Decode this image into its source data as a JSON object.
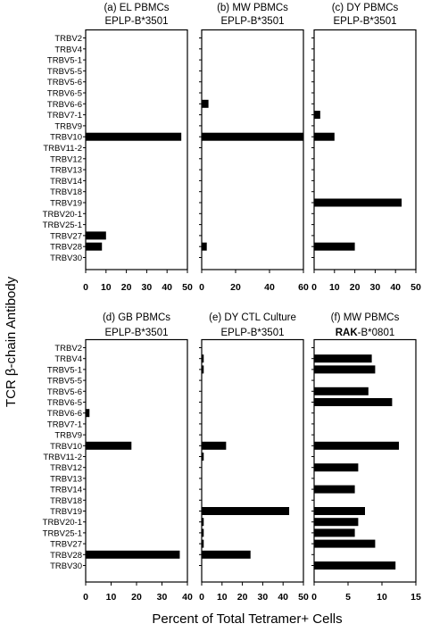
{
  "figure": {
    "ylabel": "TCR β-chain Antibody",
    "xlabel": "Percent of Total Tetramer+ Cells"
  },
  "chart_data": [
    {
      "type": "bar",
      "orientation": "horizontal",
      "title": "(a) EL PBMCs",
      "subtitle": "EPLP-B*3501",
      "subtitle_bold": "",
      "categories": [
        "TRBV2",
        "TRBV4",
        "TRBV5-1",
        "TRBV5-5",
        "TRBV5-6",
        "TRBV6-5",
        "TRBV6-6",
        "TRBV7-1",
        "TRBV9",
        "TRBV10",
        "TRBV11-2",
        "TRBV12",
        "TRBV13",
        "TRBV14",
        "TRBV18",
        "TRBV19",
        "TRBV20-1",
        "TRBV25-1",
        "TRBV27",
        "TRBV28",
        "TRBV30"
      ],
      "values": [
        0,
        0,
        0,
        0,
        0,
        0,
        0,
        0,
        0,
        47,
        0,
        0,
        0,
        0,
        0,
        0,
        0,
        0,
        10,
        8,
        0
      ],
      "xlim": [
        0,
        50
      ],
      "xticks": [
        "0",
        "10",
        "20",
        "30",
        "40",
        "50"
      ]
    },
    {
      "type": "bar",
      "orientation": "horizontal",
      "title": "(b) MW PBMCs",
      "subtitle": "EPLP-B*3501",
      "subtitle_bold": "",
      "categories": [
        "TRBV2",
        "TRBV4",
        "TRBV5-1",
        "TRBV5-5",
        "TRBV5-6",
        "TRBV6-5",
        "TRBV6-6",
        "TRBV7-1",
        "TRBV9",
        "TRBV10",
        "TRBV11-2",
        "TRBV12",
        "TRBV13",
        "TRBV14",
        "TRBV18",
        "TRBV19",
        "TRBV20-1",
        "TRBV25-1",
        "TRBV27",
        "TRBV28",
        "TRBV30"
      ],
      "values": [
        0,
        0,
        0,
        0,
        0,
        0,
        4,
        0,
        0,
        60,
        0,
        0,
        0,
        0,
        0,
        0,
        0,
        0,
        0,
        3,
        0
      ],
      "xlim": [
        0,
        60
      ],
      "xticks": [
        "0",
        "20",
        "40",
        "60"
      ]
    },
    {
      "type": "bar",
      "orientation": "horizontal",
      "title": "(c) DY PBMCs",
      "subtitle": "EPLP-B*3501",
      "subtitle_bold": "",
      "categories": [
        "TRBV2",
        "TRBV4",
        "TRBV5-1",
        "TRBV5-5",
        "TRBV5-6",
        "TRBV6-5",
        "TRBV6-6",
        "TRBV7-1",
        "TRBV9",
        "TRBV10",
        "TRBV11-2",
        "TRBV12",
        "TRBV13",
        "TRBV14",
        "TRBV18",
        "TRBV19",
        "TRBV20-1",
        "TRBV25-1",
        "TRBV27",
        "TRBV28",
        "TRBV30"
      ],
      "values": [
        0,
        0,
        0,
        0,
        0,
        0,
        0,
        3,
        0,
        10,
        0,
        0,
        0,
        0,
        0,
        43,
        0,
        0,
        0,
        20,
        0
      ],
      "xlim": [
        0,
        50
      ],
      "xticks": [
        "0",
        "10",
        "20",
        "30",
        "40",
        "50"
      ]
    },
    {
      "type": "bar",
      "orientation": "horizontal",
      "title": "(d) GB PBMCs",
      "subtitle": "EPLP-B*3501",
      "subtitle_bold": "",
      "categories": [
        "TRBV2",
        "TRBV4",
        "TRBV5-1",
        "TRBV5-5",
        "TRBV5-6",
        "TRBV6-5",
        "TRBV6-6",
        "TRBV7-1",
        "TRBV9",
        "TRBV10",
        "TRBV11-2",
        "TRBV12",
        "TRBV13",
        "TRBV14",
        "TRBV18",
        "TRBV19",
        "TRBV20-1",
        "TRBV25-1",
        "TRBV27",
        "TRBV28",
        "TRBV30"
      ],
      "values": [
        0,
        0,
        0,
        0,
        0,
        0,
        1.5,
        0,
        0,
        18,
        0,
        0,
        0,
        0,
        0,
        0,
        0,
        0,
        0,
        37,
        0
      ],
      "xlim": [
        0,
        40
      ],
      "xticks": [
        "0",
        "10",
        "20",
        "30",
        "40"
      ]
    },
    {
      "type": "bar",
      "orientation": "horizontal",
      "title": "(e) DY CTL Culture",
      "subtitle": "EPLP-B*3501",
      "subtitle_bold": "",
      "categories": [
        "TRBV2",
        "TRBV4",
        "TRBV5-1",
        "TRBV5-5",
        "TRBV5-6",
        "TRBV6-5",
        "TRBV6-6",
        "TRBV7-1",
        "TRBV9",
        "TRBV10",
        "TRBV11-2",
        "TRBV12",
        "TRBV13",
        "TRBV14",
        "TRBV18",
        "TRBV19",
        "TRBV20-1",
        "TRBV25-1",
        "TRBV27",
        "TRBV28",
        "TRBV30"
      ],
      "values": [
        0,
        1,
        1,
        0,
        0,
        0,
        0,
        0,
        0,
        12,
        1,
        0,
        0,
        0,
        0,
        43,
        1,
        1,
        1,
        24,
        0
      ],
      "xlim": [
        0,
        50
      ],
      "xticks": [
        "0",
        "10",
        "20",
        "30",
        "40",
        "50"
      ]
    },
    {
      "type": "bar",
      "orientation": "horizontal",
      "title": "(f) MW PBMCs",
      "subtitle": "-B*0801",
      "subtitle_bold": "RAK",
      "categories": [
        "TRBV2",
        "TRBV4",
        "TRBV5-1",
        "TRBV5-5",
        "TRBV5-6",
        "TRBV6-5",
        "TRBV6-6",
        "TRBV7-1",
        "TRBV9",
        "TRBV10",
        "TRBV11-2",
        "TRBV12",
        "TRBV13",
        "TRBV14",
        "TRBV18",
        "TRBV19",
        "TRBV20-1",
        "TRBV25-1",
        "TRBV27",
        "TRBV28",
        "TRBV30"
      ],
      "values": [
        0,
        8.5,
        9,
        0,
        8,
        11.5,
        0,
        0,
        0,
        12.5,
        0,
        6.5,
        0,
        6,
        0,
        7.5,
        6.5,
        6,
        9,
        0,
        12
      ],
      "xlim": [
        0,
        15
      ],
      "xticks": [
        "0",
        "5",
        "10",
        "15"
      ]
    }
  ]
}
